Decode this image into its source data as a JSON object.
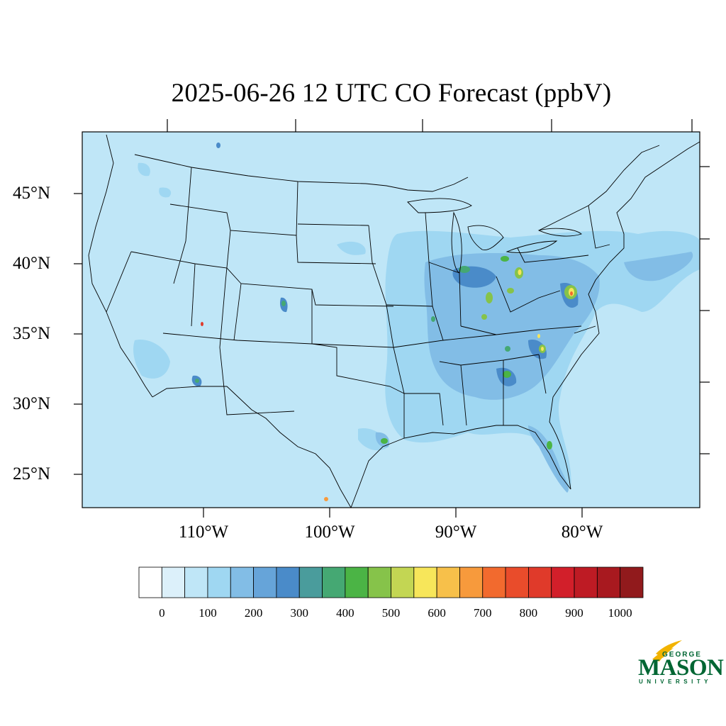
{
  "title": "2025-06-26 12 UTC CO Forecast (ppbV)",
  "lat_labels": [
    "45°N",
    "40°N",
    "35°N",
    "30°N",
    "25°N"
  ],
  "lon_labels": [
    "110°W",
    "100°W",
    "90°W",
    "80°W"
  ],
  "colorbar": {
    "tick_labels": [
      "0",
      "100",
      "200",
      "300",
      "400",
      "500",
      "600",
      "700",
      "800",
      "900",
      "1000"
    ],
    "colors": [
      "#ffffff",
      "#dcf0fa",
      "#bfe6f7",
      "#9fd7f2",
      "#82bde6",
      "#66a4d9",
      "#4a8bc9",
      "#4a9c9c",
      "#45a873",
      "#4bb445",
      "#86c34a",
      "#c3d653",
      "#f7e65a",
      "#f7c04a",
      "#f79a3c",
      "#f26a2e",
      "#e94c2b",
      "#e03a2a",
      "#d21f2a",
      "#be1b24",
      "#a8191f",
      "#911a1c"
    ]
  },
  "colors": {
    "background_field": "#bfe6f7",
    "map_lines": "#000000",
    "logo_green": "#006633",
    "logo_gold": "#f2b300"
  },
  "logo": {
    "line1": "GEORGE",
    "line2": "MASON",
    "line3": "UNIVERSITY"
  }
}
